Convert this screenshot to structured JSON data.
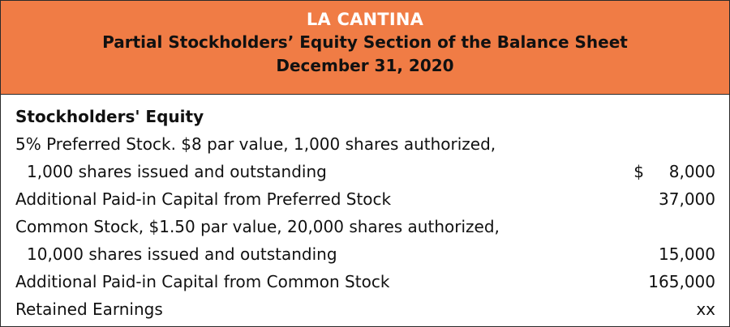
{
  "header": {
    "company": "LA CANTINA",
    "subtitle": "Partial Stockholders’ Equity Section of the Balance Sheet",
    "date": "December 31, 2020"
  },
  "section": {
    "title": "Stockholders' Equity",
    "rows": [
      {
        "label": "5% Preferred Stock. $8 par value, 1,000 shares authorized,",
        "currency": "",
        "amount": ""
      },
      {
        "label": "1,000 shares issued and outstanding",
        "currency": "$",
        "amount": "8,000"
      },
      {
        "label": "Additional Paid-in Capital from Preferred Stock",
        "currency": "",
        "amount": "37,000"
      },
      {
        "label": "Common Stock, $1.50 par value, 20,000 shares authorized,",
        "currency": "",
        "amount": ""
      },
      {
        "label": "10,000 shares issued and outstanding",
        "currency": "",
        "amount": "15,000"
      },
      {
        "label": "Additional Paid-in Capital from Common Stock",
        "currency": "",
        "amount": "165,000"
      },
      {
        "label": "Retained Earnings",
        "currency": "",
        "amount": "xx"
      }
    ]
  }
}
